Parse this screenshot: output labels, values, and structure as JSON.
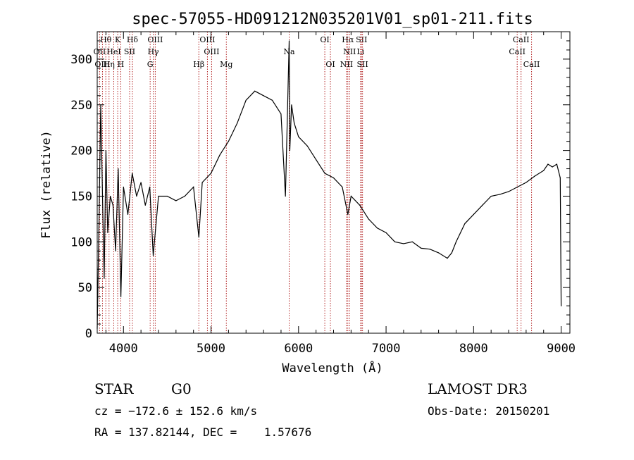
{
  "chart_data": {
    "type": "line",
    "title": "spec-57055-HD091212N035201V01_sp01-211.fits",
    "xlabel": "Wavelength (Å)",
    "ylabel": "Flux (relative)",
    "xlim": [
      3700,
      9100
    ],
    "ylim": [
      0,
      330
    ],
    "xticks": [
      4000,
      5000,
      6000,
      7000,
      8000,
      9000
    ],
    "yticks": [
      0,
      50,
      100,
      150,
      200,
      250,
      300
    ],
    "grid": false,
    "series": [
      {
        "name": "flux",
        "x": [
          3700,
          3720,
          3740,
          3760,
          3780,
          3800,
          3820,
          3850,
          3880,
          3910,
          3940,
          3970,
          4000,
          4050,
          4100,
          4150,
          4200,
          4250,
          4300,
          4340,
          4400,
          4500,
          4600,
          4700,
          4800,
          4861,
          4900,
          5000,
          5100,
          5200,
          5300,
          5400,
          5500,
          5600,
          5700,
          5800,
          5850,
          5893,
          5900,
          5920,
          5950,
          6000,
          6100,
          6200,
          6300,
          6400,
          6500,
          6563,
          6600,
          6700,
          6800,
          6900,
          7000,
          7100,
          7200,
          7300,
          7400,
          7500,
          7600,
          7700,
          7750,
          7800,
          7900,
          8000,
          8100,
          8200,
          8300,
          8400,
          8500,
          8600,
          8700,
          8800,
          8850,
          8900,
          8950,
          8990,
          9000
        ],
        "y": [
          5,
          120,
          250,
          150,
          60,
          200,
          110,
          150,
          140,
          90,
          180,
          40,
          160,
          130,
          175,
          150,
          165,
          140,
          160,
          85,
          150,
          150,
          145,
          150,
          160,
          105,
          165,
          175,
          195,
          210,
          230,
          255,
          265,
          260,
          255,
          240,
          150,
          320,
          200,
          250,
          230,
          215,
          205,
          190,
          175,
          170,
          160,
          130,
          150,
          140,
          125,
          115,
          110,
          100,
          98,
          100,
          93,
          92,
          88,
          82,
          88,
          100,
          120,
          130,
          140,
          150,
          152,
          155,
          160,
          165,
          172,
          178,
          185,
          182,
          185,
          170,
          30
        ]
      }
    ],
    "spectral_lines": [
      {
        "label": "Hθ",
        "wavelength": 3798,
        "row": 0
      },
      {
        "label": "K",
        "wavelength": 3934,
        "row": 0
      },
      {
        "label": "Hδ",
        "wavelength": 4102,
        "row": 0
      },
      {
        "label": "OIII",
        "wavelength": 4363,
        "row": 0
      },
      {
        "label": "OIII",
        "wavelength": 4959,
        "row": 0
      },
      {
        "label": "OI",
        "wavelength": 6300,
        "row": 0
      },
      {
        "label": "Hα",
        "wavelength": 6563,
        "row": 0
      },
      {
        "label": "SII",
        "wavelength": 6720,
        "row": 0
      },
      {
        "label": "CaII",
        "wavelength": 8542,
        "row": 0
      },
      {
        "label": "OII",
        "wavelength": 3727,
        "row": 1
      },
      {
        "label": "HeI",
        "wavelength": 3889,
        "row": 1
      },
      {
        "label": "SII",
        "wavelength": 4070,
        "row": 1
      },
      {
        "label": "Hγ",
        "wavelength": 4340,
        "row": 1
      },
      {
        "label": "OIII",
        "wavelength": 5007,
        "row": 1
      },
      {
        "label": "NII",
        "wavelength": 6583,
        "row": 1
      },
      {
        "label": "Li",
        "wavelength": 6708,
        "row": 1
      },
      {
        "label": "CaII",
        "wavelength": 8498,
        "row": 1
      },
      {
        "label": "OIII",
        "wavelength": 3760,
        "row": 2
      },
      {
        "label": "Hη",
        "wavelength": 3835,
        "row": 2
      },
      {
        "label": "H",
        "wavelength": 3969,
        "row": 2
      },
      {
        "label": "G",
        "wavelength": 4305,
        "row": 2
      },
      {
        "label": "Hβ",
        "wavelength": 4861,
        "row": 2
      },
      {
        "label": "Mg",
        "wavelength": 5175,
        "row": 2
      },
      {
        "label": "Na",
        "wavelength": 5893,
        "row": 1
      },
      {
        "label": "OI",
        "wavelength": 6364,
        "row": 2
      },
      {
        "label": "NII",
        "wavelength": 6548,
        "row": 2
      },
      {
        "label": "SII",
        "wavelength": 6731,
        "row": 2
      },
      {
        "label": "CaII",
        "wavelength": 8662,
        "row": 2
      }
    ]
  },
  "info": {
    "class": "STAR",
    "subclass": "G0",
    "survey": "LAMOST DR3",
    "redshift": "cz = −172.6 ± 152.6 km/s",
    "obs_date": "Obs-Date: 20150201",
    "coords": "RA = 137.82144, DEC =    1.57676"
  },
  "colors": {
    "axis": "#000000",
    "spectrum": "#000000",
    "line_marker": "#b22222"
  }
}
